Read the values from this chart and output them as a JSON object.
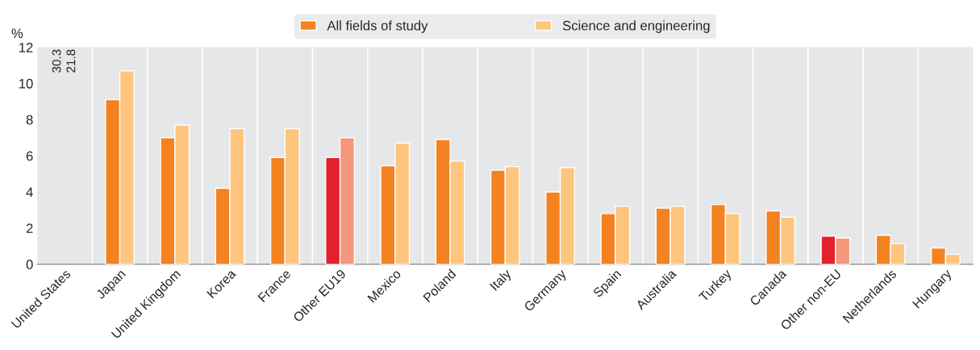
{
  "chart_data": {
    "type": "bar",
    "ylabel": "%",
    "categories": [
      "United States",
      "Japan",
      "United Kingdom",
      "Korea",
      "France",
      "Other EU19",
      "Mexico",
      "Poland",
      "Italy",
      "Germany",
      "Spain",
      "Australia",
      "Turkey",
      "Canada",
      "Other non-EU",
      "Netherlands",
      "Hungary"
    ],
    "series": [
      {
        "name": "All fields of study",
        "color": "#f58220",
        "colors": [
          "#f58220",
          "#f58220",
          "#f58220",
          "#f58220",
          "#f58220",
          "#e3202b",
          "#f58220",
          "#f58220",
          "#f58220",
          "#f58220",
          "#f58220",
          "#f58220",
          "#f58220",
          "#f58220",
          "#e3202b",
          "#f58220",
          "#f58220"
        ],
        "values": [
          null,
          9.1,
          7.0,
          4.2,
          5.9,
          5.9,
          5.45,
          6.9,
          5.2,
          4.0,
          2.8,
          3.1,
          3.3,
          2.95,
          1.55,
          1.6,
          0.9
        ],
        "value_labels": [
          "30.3",
          null,
          null,
          null,
          null,
          null,
          null,
          null,
          null,
          null,
          null,
          null,
          null,
          null,
          null,
          null,
          null
        ]
      },
      {
        "name": "Science and engineering",
        "color": "#fdc57e",
        "colors": [
          "#fdc57e",
          "#fdc57e",
          "#fdc57e",
          "#fdc57e",
          "#fdc57e",
          "#f4977a",
          "#fdc57e",
          "#fdc57e",
          "#fdc57e",
          "#fdc57e",
          "#fdc57e",
          "#fdc57e",
          "#fdc57e",
          "#fdc57e",
          "#f4977a",
          "#fdc57e",
          "#fdc57e"
        ],
        "values": [
          null,
          10.7,
          7.7,
          7.5,
          7.5,
          7.0,
          6.7,
          5.7,
          5.4,
          5.35,
          3.2,
          3.2,
          2.8,
          2.6,
          1.45,
          1.15,
          0.55
        ],
        "value_labels": [
          "21.8",
          null,
          null,
          null,
          null,
          null,
          null,
          null,
          null,
          null,
          null,
          null,
          null,
          null,
          null,
          null,
          null
        ]
      }
    ],
    "ylim": [
      0,
      12
    ],
    "yticks": [
      0,
      2,
      4,
      6,
      8,
      10,
      12
    ],
    "grid": "x",
    "legend": "top"
  }
}
